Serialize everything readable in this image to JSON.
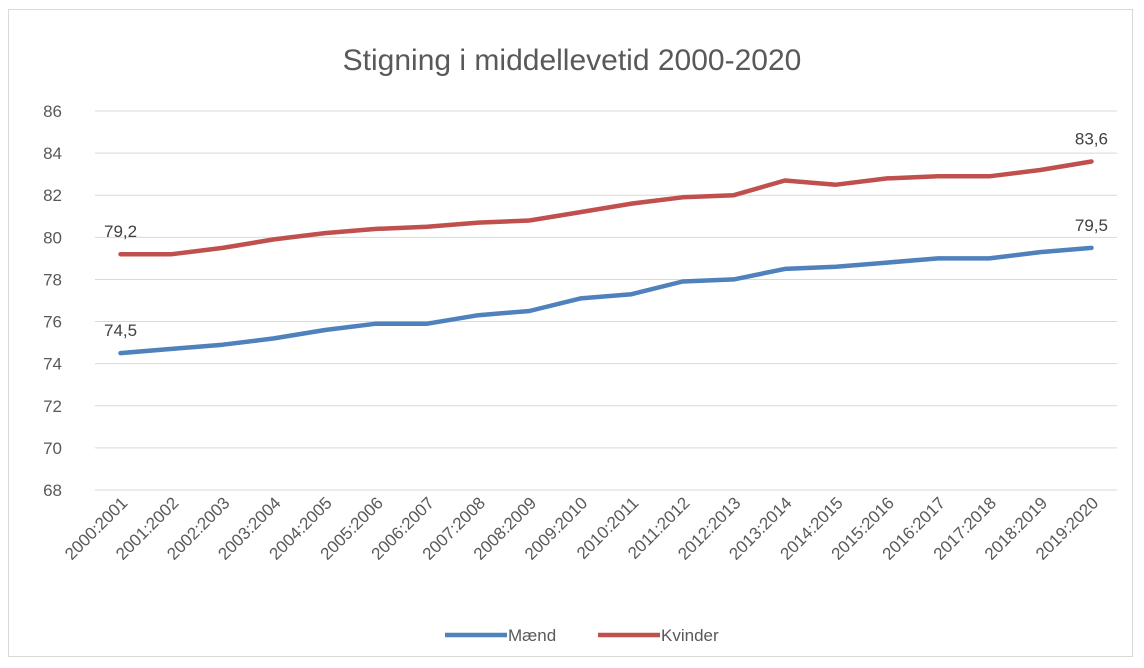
{
  "chart_data": {
    "type": "line",
    "title": "Stigning i middellevetid 2000-2020",
    "xlabel": "",
    "ylabel": "",
    "categories": [
      "2000:2001",
      "2001:2002",
      "2002:2003",
      "2003:2004",
      "2004:2005",
      "2005:2006",
      "2006:2007",
      "2007:2008",
      "2008:2009",
      "2009:2010",
      "2010:2011",
      "2011:2012",
      "2012:2013",
      "2013:2014",
      "2014:2015",
      "2015:2016",
      "2016:2017",
      "2017:2018",
      "2018:2019",
      "2019:2020"
    ],
    "ylim": [
      68,
      86
    ],
    "yticks": [
      "68",
      "70",
      "72",
      "74",
      "76",
      "78",
      "80",
      "82",
      "84",
      "86"
    ],
    "grid": true,
    "legend_position": "bottom",
    "series": [
      {
        "name": "Mænd",
        "color": "#4f81bd",
        "values": [
          74.5,
          74.7,
          74.9,
          75.2,
          75.6,
          75.9,
          75.9,
          76.3,
          76.5,
          77.1,
          77.3,
          77.9,
          78.0,
          78.5,
          78.6,
          78.8,
          79.0,
          79.0,
          79.3,
          79.5
        ],
        "data_labels": [
          {
            "index": 0,
            "text": "74,5"
          },
          {
            "index": 19,
            "text": "79,5"
          }
        ]
      },
      {
        "name": "Kvinder",
        "color": "#c0504d",
        "values": [
          79.2,
          79.2,
          79.5,
          79.9,
          80.2,
          80.4,
          80.5,
          80.7,
          80.8,
          81.2,
          81.6,
          81.9,
          82.0,
          82.7,
          82.5,
          82.8,
          82.9,
          82.9,
          83.2,
          83.6
        ],
        "data_labels": [
          {
            "index": 0,
            "text": "79,2"
          },
          {
            "index": 19,
            "text": "83,6"
          }
        ]
      }
    ]
  }
}
